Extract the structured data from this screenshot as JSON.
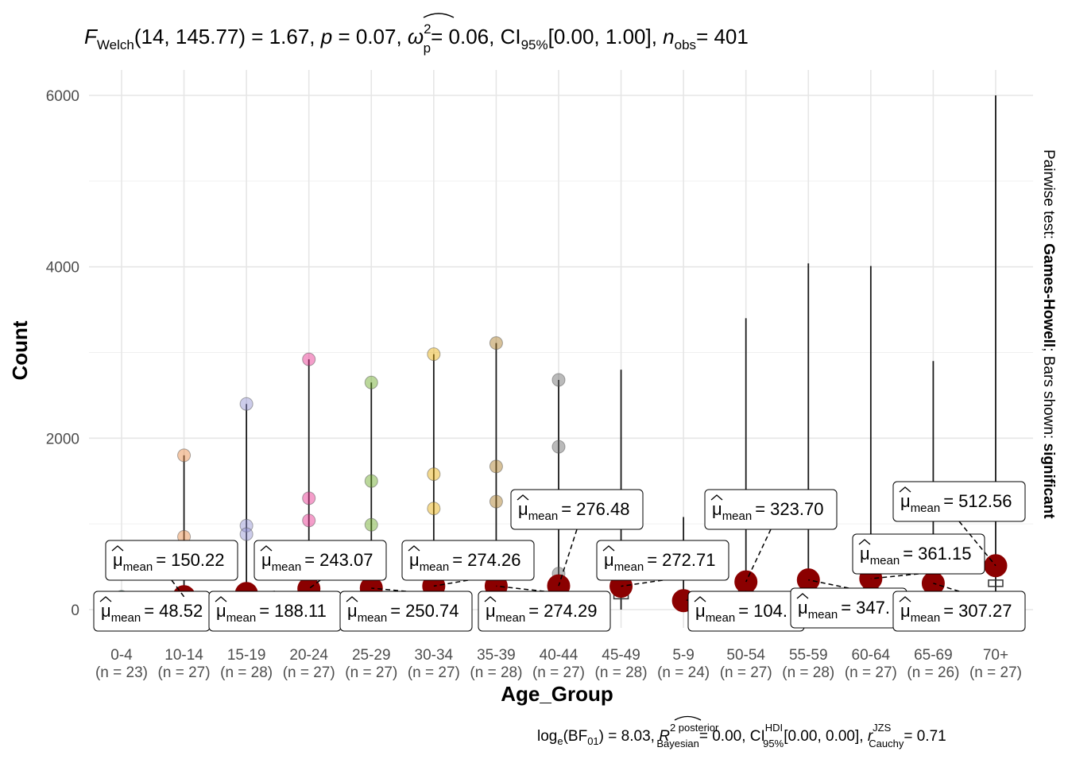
{
  "chart_data": {
    "type": "scatter",
    "title": "F_Welch(14, 145.77) = 1.67, p = 0.07, ω²_p = 0.06, CI95% [0.00, 1.00], n_obs = 401",
    "title_parts": {
      "stat_symbol": "F",
      "stat_sub": "Welch",
      "df": "(14, 145.77)",
      "stat_value": "= 1.67,",
      "p_symbol": "p",
      "p_value": "= 0.07,",
      "es_symbol": "ω",
      "es_sup": "2",
      "es_sub": "p",
      "es_value": "= 0.06, CI",
      "ci_sub": "95%",
      "ci_value": "[0.00, 1.00],",
      "n_symbol": "n",
      "n_sub": "obs",
      "n_value": "= 401"
    },
    "subtitle_parts": {
      "bf_prefix": "log",
      "bf_e": "e",
      "bf_mid": "(BF",
      "bf_sub": "01",
      "bf_value": ") = 8.03,",
      "r_symbol": "R",
      "r_sup": "2 posterior",
      "r_sub": "Bayesian",
      "r_value": "= 0.00, CI",
      "ci_sup": "HDI",
      "ci_sub": "95%",
      "ci_value": "[0.00, 0.00],",
      "rc_symbol": "r",
      "rc_sup": "JZS",
      "rc_sub": "Cauchy",
      "rc_value": "= 0.71"
    },
    "xlabel": "Age_Group",
    "ylabel": "Count",
    "right_caption": {
      "prefix": "Pairwise test: ",
      "test": "Games-Howell",
      "middle": "; Bars shown: ",
      "shown": "significant"
    },
    "ylim": [
      -300,
      6300
    ],
    "yticks": [
      0,
      2000,
      4000,
      6000
    ],
    "ytick_labels": [
      "0",
      "2000",
      "4000",
      "6000"
    ],
    "grid": true,
    "mean_label_prefix": "μ",
    "mean_label_sub": "mean",
    "groups": [
      {
        "name": "0-4",
        "n_label": "(n = 23)",
        "color": "#1b9e77",
        "max": 150,
        "mean": 48.52,
        "mean_label": "= 48.52",
        "outliers": [
          150
        ]
      },
      {
        "name": "10-14",
        "n_label": "(n = 27)",
        "color": "#e6853f",
        "max": 1800,
        "mean": 150.22,
        "mean_label": "= 150.22",
        "outliers": [
          1800,
          850
        ]
      },
      {
        "name": "15-19",
        "n_label": "(n = 28)",
        "color": "#8f8fd1",
        "max": 2400,
        "mean": 188.11,
        "mean_label": "= 188.11",
        "outliers": [
          2400,
          980,
          880
        ]
      },
      {
        "name": "20-24",
        "n_label": "(n = 27)",
        "color": "#e7298a",
        "max": 2920,
        "mean": 243.07,
        "mean_label": "= 243.07",
        "outliers": [
          2920,
          1300,
          1040
        ]
      },
      {
        "name": "25-29",
        "n_label": "(n = 27)",
        "color": "#66a61e",
        "max": 2650,
        "mean": 250.74,
        "mean_label": "= 250.74",
        "outliers": [
          2650,
          1500,
          990
        ]
      },
      {
        "name": "30-34",
        "n_label": "(n = 27)",
        "color": "#e6ab02",
        "max": 2980,
        "mean": 274.26,
        "mean_label": "= 274.26",
        "outliers": [
          2980,
          1580,
          1180
        ]
      },
      {
        "name": "35-39",
        "n_label": "(n = 28)",
        "color": "#a6761d",
        "max": 3110,
        "mean": 274.29,
        "mean_label": "= 274.29",
        "outliers": [
          3110,
          1670,
          1260
        ]
      },
      {
        "name": "40-44",
        "n_label": "(n = 27)",
        "color": "#666666",
        "max": 2680,
        "mean": 276.48,
        "mean_label": "= 276.48",
        "outliers": [
          2680,
          1900,
          420
        ]
      },
      {
        "name": "45-49",
        "n_label": "(n = 28)",
        "color": "#1b9e77",
        "max": 2800,
        "mean": 272.71,
        "mean_label": "= 272.71",
        "outliers": []
      },
      {
        "name": "5-9",
        "n_label": "(n = 24)",
        "color": "#e6853f",
        "max": 1080,
        "mean": 104.0,
        "mean_label": "= 104.",
        "outliers": []
      },
      {
        "name": "50-54",
        "n_label": "(n = 27)",
        "color": "#8f8fd1",
        "max": 3400,
        "mean": 323.7,
        "mean_label": "= 323.70",
        "outliers": []
      },
      {
        "name": "55-59",
        "n_label": "(n = 28)",
        "color": "#e7298a",
        "max": 4040,
        "mean": 347.0,
        "mean_label": "= 347.",
        "outliers": []
      },
      {
        "name": "60-64",
        "n_label": "(n = 27)",
        "color": "#66a61e",
        "max": 4010,
        "mean": 361.15,
        "mean_label": "= 361.15",
        "outliers": []
      },
      {
        "name": "65-69",
        "n_label": "(n = 26)",
        "color": "#e6ab02",
        "max": 2900,
        "mean": 307.27,
        "mean_label": "= 307.27",
        "outliers": []
      },
      {
        "name": "70+",
        "n_label": "(n = 27)",
        "color": "#a6761d",
        "max": 6000,
        "mean": 512.56,
        "mean_label": "= 512.56",
        "outliers": []
      }
    ]
  }
}
